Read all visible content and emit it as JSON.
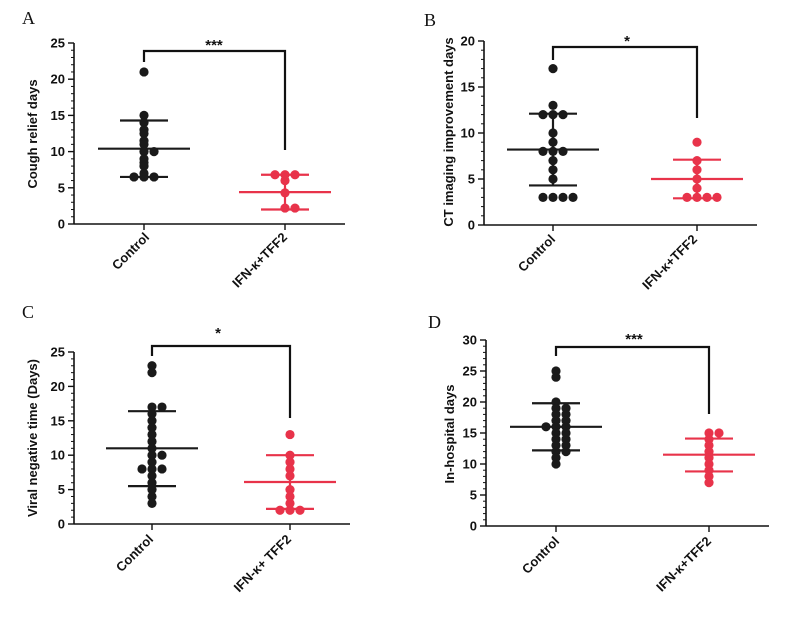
{
  "chart_data": [
    {
      "panel": "A",
      "type": "scatter",
      "ylabel": "Cough relief days",
      "ylim": [
        0,
        25
      ],
      "yticks": [
        0,
        5,
        10,
        15,
        20,
        25
      ],
      "categories": [
        "Control",
        "IFN-κ+TFF2"
      ],
      "series": [
        {
          "name": "Control",
          "color": "#1a1a1a",
          "mean": 10.4,
          "sd_low": 6.5,
          "sd_high": 14.3,
          "values": [
            21,
            15,
            14,
            13,
            12.5,
            11.5,
            11,
            10,
            10,
            9,
            8.5,
            8,
            7,
            6.5,
            6.5,
            6.5
          ]
        },
        {
          "name": "IFN-κ+TFF2",
          "color": "#e8334a",
          "mean": 4.4,
          "sd_low": 2.0,
          "sd_high": 6.8,
          "values": [
            6.8,
            6.8,
            6.8,
            6,
            4.3,
            2.2,
            2.2
          ]
        }
      ],
      "significance": "***"
    },
    {
      "panel": "B",
      "type": "scatter",
      "ylabel": "CT imaging improvement days",
      "ylim": [
        0,
        20
      ],
      "yticks": [
        0,
        5,
        10,
        15,
        20
      ],
      "categories": [
        "Control",
        "IFN-κ+TFF2"
      ],
      "series": [
        {
          "name": "Control",
          "color": "#1a1a1a",
          "mean": 8.2,
          "sd_low": 4.3,
          "sd_high": 12.1,
          "values": [
            17,
            13,
            12,
            12,
            12,
            10,
            9,
            8,
            8,
            8,
            7,
            6,
            5,
            3,
            3,
            3,
            3
          ]
        },
        {
          "name": "IFN-κ+TFF2",
          "color": "#e8334a",
          "mean": 5.0,
          "sd_low": 2.9,
          "sd_high": 7.1,
          "values": [
            9,
            7,
            6,
            5,
            4,
            3,
            3,
            3,
            3
          ]
        }
      ],
      "significance": "*"
    },
    {
      "panel": "C",
      "type": "scatter",
      "ylabel": "Viral negative time (Days)",
      "ylim": [
        0,
        25
      ],
      "yticks": [
        0,
        5,
        10,
        15,
        20,
        25
      ],
      "categories": [
        "Control",
        "IFN-κ+ TFF2"
      ],
      "series": [
        {
          "name": "Control",
          "color": "#1a1a1a",
          "mean": 11.0,
          "sd_low": 5.5,
          "sd_high": 16.4,
          "values": [
            23,
            22,
            17,
            17,
            16,
            15,
            14,
            13,
            12,
            11,
            10,
            10,
            9,
            8,
            8,
            8,
            7,
            6,
            5,
            4,
            3
          ]
        },
        {
          "name": "IFN-κ+ TFF2",
          "color": "#e8334a",
          "mean": 6.1,
          "sd_low": 2.2,
          "sd_high": 10.0,
          "values": [
            13,
            10,
            9,
            8,
            7,
            5,
            4,
            3,
            2,
            2,
            2
          ]
        }
      ],
      "significance": "*"
    },
    {
      "panel": "D",
      "type": "scatter",
      "ylabel": "In-hospital days",
      "ylim": [
        0,
        30
      ],
      "yticks": [
        0,
        5,
        10,
        15,
        20,
        25,
        30
      ],
      "categories": [
        "Control",
        "IFN-κ+TFF2"
      ],
      "series": [
        {
          "name": "Control",
          "color": "#1a1a1a",
          "mean": 16.0,
          "sd_low": 12.2,
          "sd_high": 19.8,
          "values": [
            25,
            24,
            20,
            19,
            19,
            18,
            18,
            17,
            17,
            16,
            16,
            16,
            15,
            15,
            14,
            14,
            13,
            13,
            12,
            12,
            11,
            10
          ]
        },
        {
          "name": "IFN-κ+TFF2",
          "color": "#e8334a",
          "mean": 11.5,
          "sd_low": 8.8,
          "sd_high": 14.1,
          "values": [
            15,
            15,
            14,
            13,
            12,
            11,
            10,
            9,
            8,
            7
          ]
        }
      ],
      "significance": "***"
    }
  ]
}
